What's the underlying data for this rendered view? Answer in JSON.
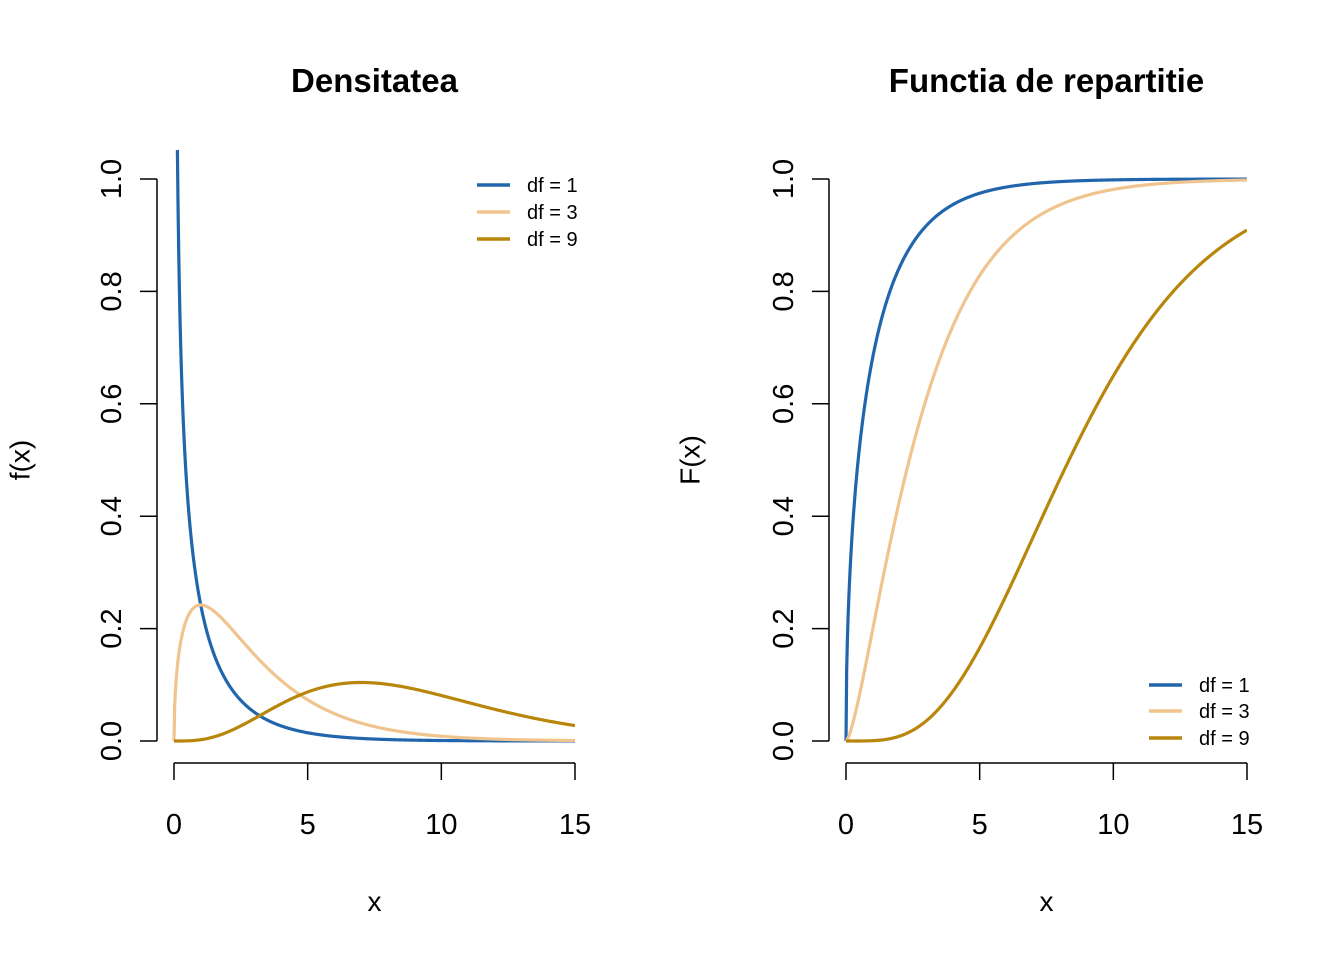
{
  "chart_data": [
    {
      "type": "line",
      "title": "Densitatea",
      "xlabel": "x",
      "ylabel": "f(x)",
      "xlim": [
        0,
        15
      ],
      "ylim": [
        0,
        1
      ],
      "xticks": [
        "0",
        "5",
        "10",
        "15"
      ],
      "yticks": [
        "0.0",
        "0.2",
        "0.4",
        "0.6",
        "0.8",
        "1.0"
      ],
      "legend_position": "top-right",
      "function": "chi-square density",
      "x": [
        1,
        2,
        3,
        4,
        5,
        6,
        7,
        8,
        9,
        10,
        11,
        12,
        13,
        14,
        15
      ],
      "series": [
        {
          "name": "df = 1",
          "df": 1,
          "color": "#2166ac",
          "values": [
            0.242,
            0.104,
            0.051,
            0.027,
            0.015,
            0.008,
            0.005,
            0.003,
            0.001,
            0.001,
            0.0,
            0.0,
            0.0,
            0.0,
            0.0
          ]
        },
        {
          "name": "df = 3",
          "df": 3,
          "color": "#f0c48e",
          "values": [
            0.242,
            0.208,
            0.154,
            0.108,
            0.073,
            0.048,
            0.031,
            0.02,
            0.013,
            0.008,
            0.005,
            0.003,
            0.002,
            0.001,
            0.001
          ]
        },
        {
          "name": "df = 9",
          "df": 9,
          "color": "#b8860b",
          "values": [
            0.002,
            0.016,
            0.04,
            0.066,
            0.087,
            0.1,
            0.104,
            0.101,
            0.092,
            0.081,
            0.069,
            0.056,
            0.045,
            0.036,
            0.028
          ]
        }
      ]
    },
    {
      "type": "line",
      "title": "Functia de repartitie",
      "xlabel": "x",
      "ylabel": "F(x)",
      "xlim": [
        0,
        15
      ],
      "ylim": [
        0,
        1
      ],
      "xticks": [
        "0",
        "5",
        "10",
        "15"
      ],
      "yticks": [
        "0.0",
        "0.2",
        "0.4",
        "0.6",
        "0.8",
        "1.0"
      ],
      "legend_position": "bottom-right",
      "function": "chi-square cumulative distribution",
      "x": [
        1,
        2,
        3,
        4,
        5,
        6,
        7,
        8,
        9,
        10,
        11,
        12,
        13,
        14,
        15
      ],
      "series": [
        {
          "name": "df = 1",
          "df": 1,
          "color": "#2166ac",
          "values": [
            0.683,
            0.843,
            0.917,
            0.954,
            0.975,
            0.986,
            0.992,
            0.995,
            0.997,
            0.998,
            0.999,
            0.999,
            1.0,
            1.0,
            1.0
          ]
        },
        {
          "name": "df = 3",
          "df": 3,
          "color": "#f0c48e",
          "values": [
            0.199,
            0.428,
            0.608,
            0.739,
            0.828,
            0.888,
            0.928,
            0.954,
            0.971,
            0.981,
            0.988,
            0.993,
            0.995,
            0.997,
            0.998
          ]
        },
        {
          "name": "df = 9",
          "df": 9,
          "color": "#b8860b",
          "values": [
            0.001,
            0.004,
            0.036,
            0.089,
            0.166,
            0.26,
            0.363,
            0.466,
            0.563,
            0.65,
            0.724,
            0.787,
            0.837,
            0.878,
            0.909
          ]
        }
      ]
    }
  ]
}
